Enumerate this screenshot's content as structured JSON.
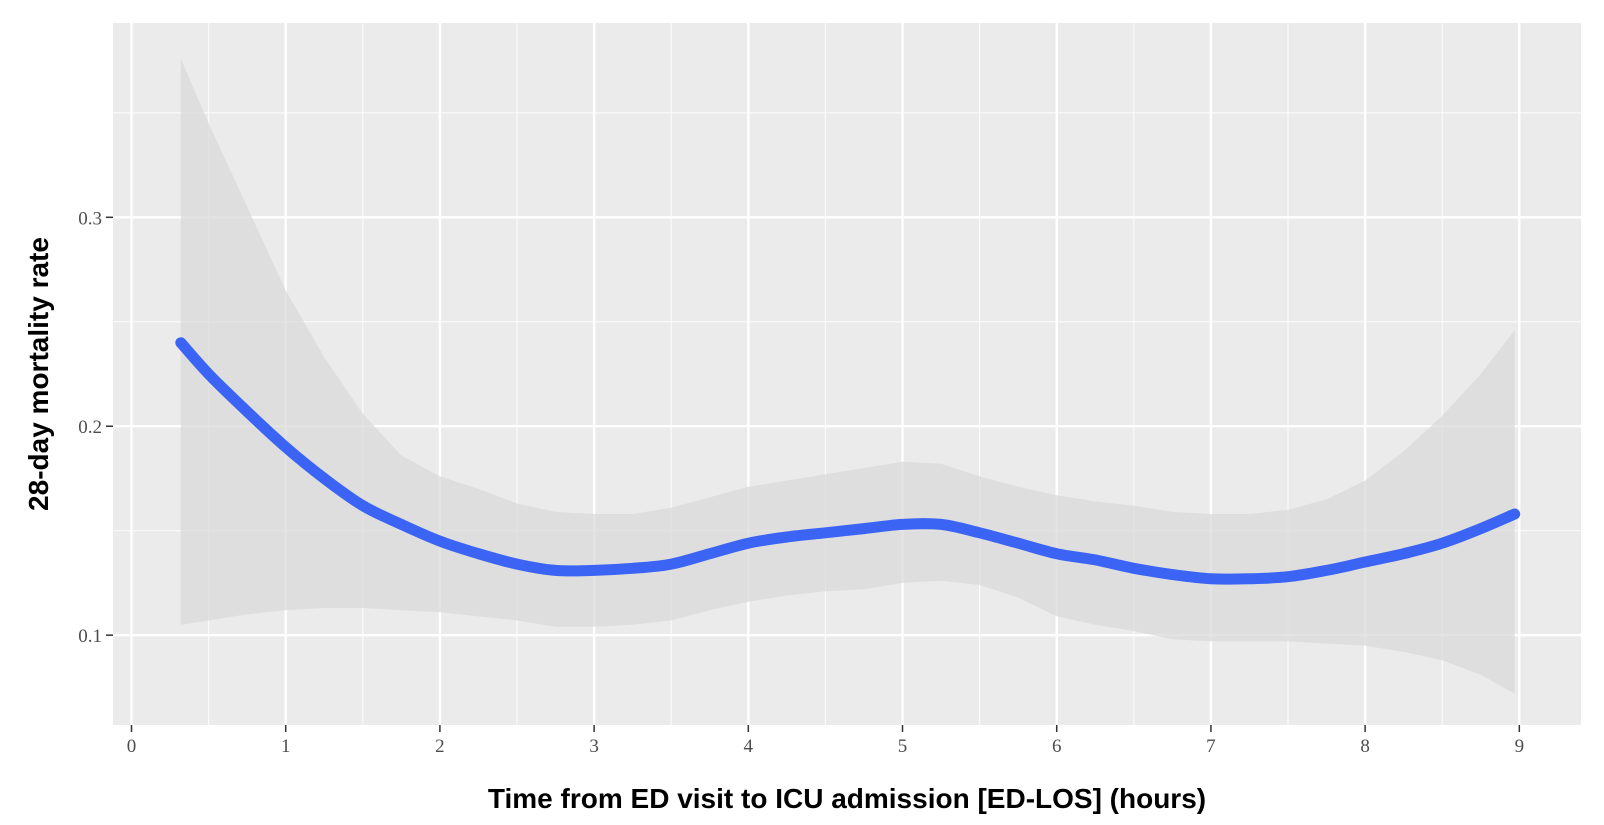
{
  "chart_data": {
    "type": "line",
    "xlabel": "Time from ED visit to ICU admission [ED-LOS] (hours)",
    "ylabel": "28-day mortality rate",
    "xlim": [
      -0.12,
      9.4
    ],
    "ylim": [
      0.057,
      0.393
    ],
    "x_ticks": [
      0,
      1,
      2,
      3,
      4,
      5,
      6,
      7,
      8,
      9
    ],
    "x_tick_labels": [
      "0",
      "1",
      "2",
      "3",
      "4",
      "5",
      "6",
      "7",
      "8",
      "9"
    ],
    "y_ticks": [
      0.1,
      0.2,
      0.3
    ],
    "y_tick_labels": [
      "0.1",
      "0.2",
      "0.3"
    ],
    "grid": true,
    "colors": {
      "panel_background": "#ebebeb",
      "grid_major": "#ffffff",
      "confidence_band": "#d9d9d9",
      "line": "#3b64f5"
    },
    "series": [
      {
        "x": [
          0.32,
          0.5,
          0.75,
          1.0,
          1.25,
          1.5,
          1.75,
          2.0,
          2.25,
          2.5,
          2.75,
          3.0,
          3.25,
          3.5,
          3.75,
          4.0,
          4.25,
          4.5,
          4.75,
          5.0,
          5.25,
          5.5,
          5.75,
          6.0,
          6.25,
          6.5,
          6.75,
          7.0,
          7.25,
          7.5,
          7.75,
          8.0,
          8.25,
          8.5,
          8.75,
          8.97
        ],
        "y": [
          0.24,
          0.225,
          0.207,
          0.19,
          0.175,
          0.162,
          0.153,
          0.145,
          0.139,
          0.134,
          0.131,
          0.131,
          0.132,
          0.134,
          0.139,
          0.144,
          0.147,
          0.149,
          0.151,
          0.153,
          0.153,
          0.149,
          0.144,
          0.139,
          0.136,
          0.132,
          0.129,
          0.127,
          0.127,
          0.128,
          0.131,
          0.135,
          0.139,
          0.144,
          0.151,
          0.158
        ],
        "lower": [
          0.105,
          0.107,
          0.11,
          0.112,
          0.113,
          0.113,
          0.112,
          0.111,
          0.109,
          0.107,
          0.104,
          0.104,
          0.105,
          0.107,
          0.112,
          0.116,
          0.119,
          0.121,
          0.122,
          0.125,
          0.126,
          0.124,
          0.118,
          0.109,
          0.105,
          0.102,
          0.098,
          0.097,
          0.097,
          0.097,
          0.096,
          0.095,
          0.092,
          0.088,
          0.081,
          0.072
        ],
        "upper": [
          0.376,
          0.345,
          0.305,
          0.265,
          0.233,
          0.206,
          0.186,
          0.176,
          0.17,
          0.163,
          0.159,
          0.158,
          0.158,
          0.161,
          0.166,
          0.171,
          0.174,
          0.177,
          0.18,
          0.183,
          0.182,
          0.176,
          0.171,
          0.167,
          0.164,
          0.162,
          0.159,
          0.158,
          0.158,
          0.16,
          0.165,
          0.174,
          0.188,
          0.205,
          0.225,
          0.246
        ]
      }
    ]
  }
}
